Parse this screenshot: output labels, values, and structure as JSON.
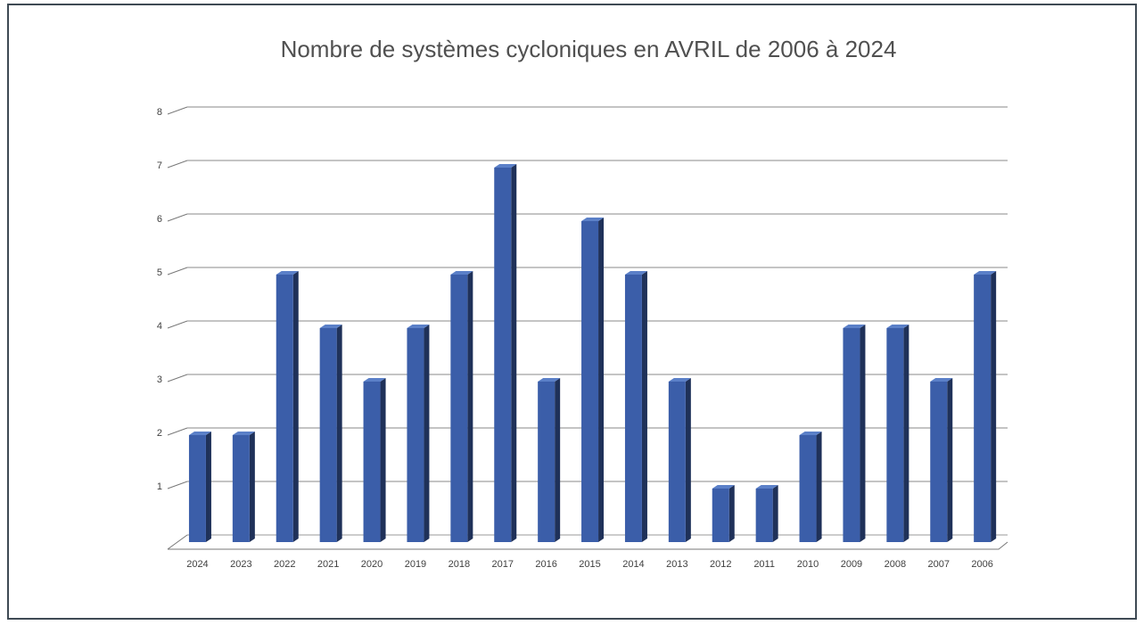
{
  "chart_data": {
    "type": "bar3d",
    "title": "Nombre de systèmes cycloniques en AVRIL de 2006 à 2024",
    "categories": [
      "2024",
      "2023",
      "2022",
      "2021",
      "2020",
      "2019",
      "2018",
      "2017",
      "2016",
      "2015",
      "2014",
      "2013",
      "2012",
      "2011",
      "2010",
      "2009",
      "2008",
      "2007",
      "2006"
    ],
    "values": [
      2,
      2,
      5,
      4,
      3,
      4,
      5,
      7,
      3,
      6,
      5,
      3,
      1,
      1,
      2,
      4,
      4,
      3,
      5
    ],
    "color": "#3b5ea9",
    "ylim": [
      0,
      8
    ],
    "yticks": [
      1,
      2,
      3,
      4,
      5,
      6,
      7,
      8
    ],
    "grid": true
  }
}
